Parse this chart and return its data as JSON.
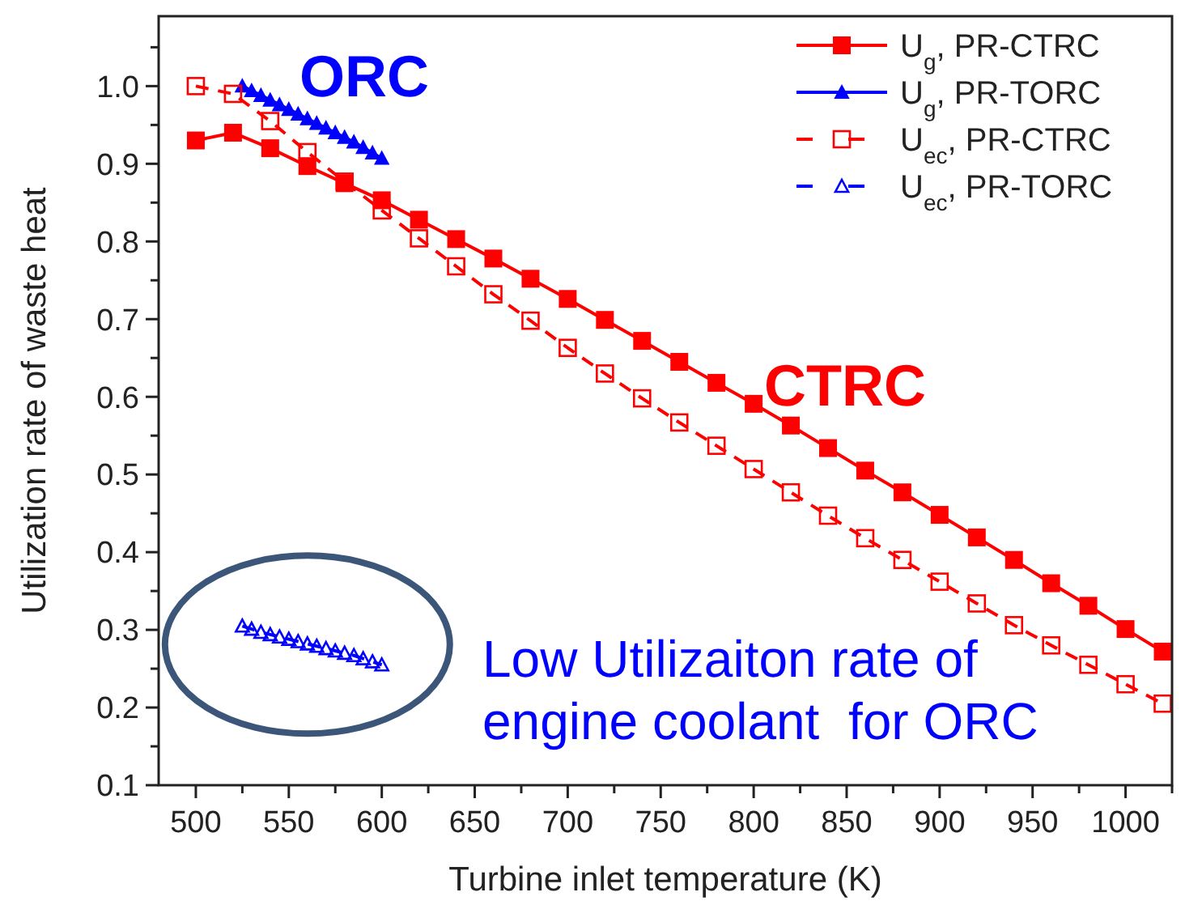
{
  "chart_data": {
    "type": "line",
    "xlabel": "Turbine inlet temperature (K)",
    "ylabel": "Utilization rate of waste heat",
    "xlim": [
      480,
      1025
    ],
    "ylim": [
      0.1,
      1.09
    ],
    "xticks": [
      500,
      {
        "value": 525,
        "label": null
      },
      550,
      {
        "value": 575,
        "label": null
      },
      600,
      {
        "value": 625,
        "label": null
      },
      650,
      {
        "value": 675,
        "label": null
      },
      700,
      {
        "value": 725,
        "label": null
      },
      750,
      {
        "value": 775,
        "label": null
      },
      800,
      {
        "value": 825,
        "label": null
      },
      850,
      {
        "value": 875,
        "label": null
      },
      900,
      {
        "value": 925,
        "label": null
      },
      950,
      {
        "value": 975,
        "label": null
      },
      1000,
      {
        "value": 1025,
        "label": null
      }
    ],
    "yticks": [
      {
        "value": 0.1,
        "label": "0.1"
      },
      {
        "value": 0.15,
        "label": null
      },
      {
        "value": 0.2,
        "label": "0.2"
      },
      {
        "value": 0.25,
        "label": null
      },
      {
        "value": 0.3,
        "label": "0.3"
      },
      {
        "value": 0.35,
        "label": null
      },
      {
        "value": 0.4,
        "label": "0.4"
      },
      {
        "value": 0.45,
        "label": null
      },
      {
        "value": 0.5,
        "label": "0.5"
      },
      {
        "value": 0.55,
        "label": null
      },
      {
        "value": 0.6,
        "label": "0.6"
      },
      {
        "value": 0.65,
        "label": null
      },
      {
        "value": 0.7,
        "label": "0.7"
      },
      {
        "value": 0.75,
        "label": null
      },
      {
        "value": 0.8,
        "label": "0.8"
      },
      {
        "value": 0.85,
        "label": null
      },
      {
        "value": 0.9,
        "label": "0.9"
      },
      {
        "value": 0.95,
        "label": null
      },
      {
        "value": 1.0,
        "label": "1.0"
      },
      {
        "value": 1.05,
        "label": null
      }
    ],
    "grid": false,
    "legend": "top right",
    "series": [
      {
        "name": "U$_{g}$,  PR-CTRC",
        "color": "#ff0000",
        "marker": "square",
        "line_style": "solid",
        "x": [
          500,
          520,
          540,
          560,
          580,
          600,
          620,
          640,
          660,
          680,
          700,
          720,
          740,
          760,
          780,
          800,
          820,
          840,
          860,
          880,
          900,
          920,
          940,
          960,
          980,
          1000,
          1020
        ],
        "values": [
          0.93,
          0.94,
          0.92,
          0.897,
          0.875,
          0.853,
          0.828,
          0.803,
          0.778,
          0.752,
          0.726,
          0.699,
          0.672,
          0.645,
          0.618,
          0.591,
          0.563,
          0.534,
          0.505,
          0.477,
          0.448,
          0.419,
          0.39,
          0.36,
          0.331,
          0.301,
          0.272
        ]
      },
      {
        "name": "U$_{g}$,  PR-TORC",
        "color": "#0000ff",
        "marker": "triangle",
        "line_style": "solid",
        "x": [
          525,
          530,
          535,
          540,
          545,
          550,
          555,
          560,
          565,
          570,
          575,
          580,
          585,
          590,
          595,
          600
        ],
        "values": [
          1.0,
          0.994,
          0.988,
          0.982,
          0.976,
          0.97,
          0.964,
          0.958,
          0.952,
          0.946,
          0.94,
          0.934,
          0.928,
          0.921,
          0.914,
          0.907
        ]
      },
      {
        "name": "U$_{ec}$, PR-CTRC",
        "color": "#ff0000",
        "marker": "square",
        "line_style": "dashed",
        "x": [
          500,
          520,
          540,
          560,
          580,
          600,
          620,
          640,
          660,
          680,
          700,
          720,
          740,
          760,
          780,
          800,
          820,
          840,
          860,
          880,
          900,
          920,
          940,
          960,
          980,
          1000,
          1020
        ],
        "values": [
          1.0,
          0.99,
          0.955,
          0.915,
          0.877,
          0.84,
          0.804,
          0.768,
          0.732,
          0.698,
          0.663,
          0.63,
          0.598,
          0.567,
          0.537,
          0.507,
          0.477,
          0.447,
          0.418,
          0.39,
          0.362,
          0.334,
          0.306,
          0.28,
          0.255,
          0.23,
          0.205
        ]
      },
      {
        "name": "U$_{ec}$, PR-TORC",
        "color": "#0000ff",
        "marker": "triangle",
        "line_style": "dashed",
        "x": [
          525,
          530,
          535,
          540,
          545,
          550,
          555,
          560,
          565,
          570,
          575,
          580,
          585,
          590,
          595,
          600
        ],
        "values": [
          0.305,
          0.301,
          0.297,
          0.294,
          0.291,
          0.288,
          0.285,
          0.282,
          0.279,
          0.276,
          0.273,
          0.27,
          0.267,
          0.263,
          0.259,
          0.255
        ]
      }
    ],
    "annotations": [
      "ORC",
      "CTRC",
      "Low Utilizaiton rate of\nengine coolant  for ORC"
    ]
  }
}
